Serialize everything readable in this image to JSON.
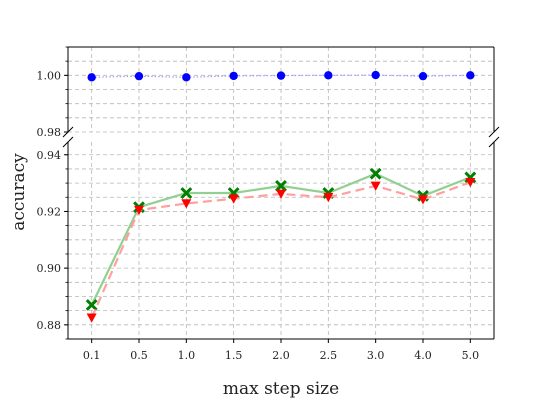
{
  "chart_data": {
    "type": "line",
    "xlabel": "max step size",
    "ylabel": "accuracy",
    "categories": [
      "0.1",
      "0.5",
      "1.0",
      "1.5",
      "2.0",
      "2.5",
      "3.0",
      "4.0",
      "5.0"
    ],
    "grid": true,
    "broken_y_axis": true,
    "panels": [
      {
        "ylim": [
          0.98,
          1.01
        ],
        "yticks": [
          0.98,
          1.0
        ],
        "ytick_labels": [
          "0.98",
          "1.00"
        ],
        "series": [
          {
            "color": "#0000ff",
            "marker": "circle",
            "line_style": "dotted",
            "values": [
              0.9993,
              0.9997,
              0.9993,
              0.9998,
              0.9999,
              1.0,
              1.0001,
              0.9997,
              1.0
            ]
          }
        ]
      },
      {
        "ylim": [
          0.875,
          0.9445
        ],
        "yticks": [
          0.88,
          0.9,
          0.92,
          0.94
        ],
        "ytick_labels": [
          "0.88",
          "0.90",
          "0.92",
          "0.94"
        ],
        "series": [
          {
            "color": "#008000",
            "marker": "x-filled",
            "line_color": "#90d090",
            "line_style": "solid",
            "values": [
              0.887,
              0.9215,
              0.9265,
              0.9265,
              0.929,
              0.9265,
              0.9333,
              0.9255,
              0.932
            ]
          },
          {
            "color": "#ff0000",
            "marker": "triangle-down",
            "line_color": "#ff9f9f",
            "line_style": "dashed",
            "values": [
              0.8825,
              0.9205,
              0.9228,
              0.9245,
              0.9262,
              0.925,
              0.929,
              0.9242,
              0.9303
            ]
          }
        ]
      }
    ]
  }
}
